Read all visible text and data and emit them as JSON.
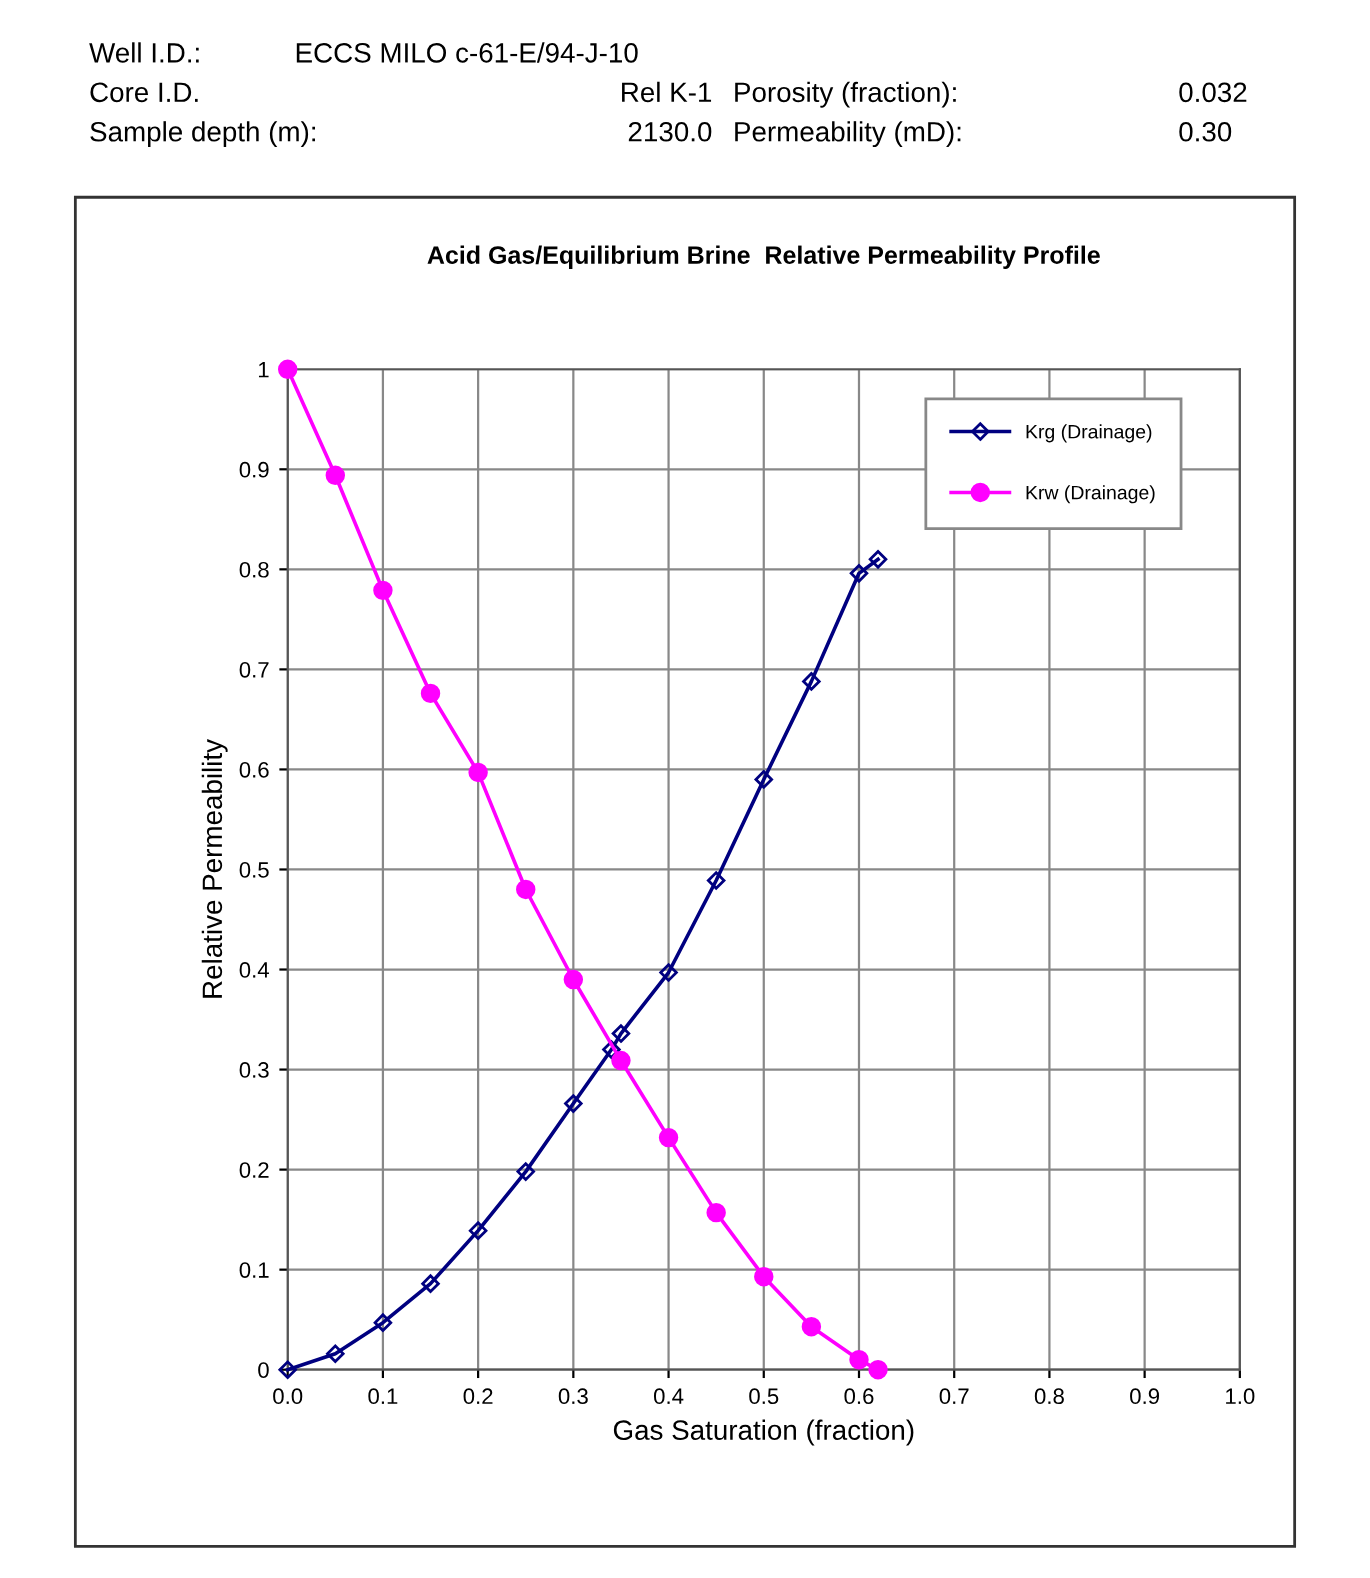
{
  "chart_data": {
    "type": "line",
    "title": "Acid Gas/Equilibrium Brine  Relative Permeability Profile",
    "xlabel": "Gas Saturation (fraction)",
    "ylabel": "Relative Permeability",
    "annotations": [
      "Well I.D.:",
      "ECCS MILO c-61-E/94-J-10",
      "Core I.D.",
      "Rel K-1",
      "Porosity (fraction):",
      "0.032",
      "Sample depth (m):",
      "2130.0",
      "Permeability (mD):",
      "0.30"
    ],
    "series": [
      {
        "name": "Krg (Drainage)",
        "color": "#000080",
        "marker": "diamond",
        "x": [
          0,
          0.05,
          0.1,
          0.15,
          0.2,
          0.25,
          0.3,
          0.34,
          0.35,
          0.4,
          0.45,
          0.5,
          0.55,
          0.6,
          0.62
        ],
        "values": [
          0,
          0.016,
          0.047,
          0.086,
          0.139,
          0.198,
          0.266,
          0.32,
          0.336,
          0.397,
          0.489,
          0.59,
          0.688,
          0.796,
          0.81
        ]
      },
      {
        "name": "Krw (Drainage)",
        "color": "#ff00ff",
        "marker": "circle",
        "x": [
          0,
          0.05,
          0.1,
          0.15,
          0.2,
          0.25,
          0.3,
          0.35,
          0.4,
          0.45,
          0.5,
          0.55,
          0.6,
          0.62
        ],
        "values": [
          1,
          0.894,
          0.779,
          0.676,
          0.597,
          0.48,
          0.39,
          0.309,
          0.232,
          0.157,
          0.093,
          0.043,
          0.01,
          0
        ]
      }
    ],
    "xlim": [
      0,
      1
    ],
    "ylim": [
      0,
      1
    ],
    "xticks": [
      {
        "value": 0,
        "label": "0.0"
      },
      {
        "value": 0.1,
        "label": "0.1"
      },
      {
        "value": 0.2,
        "label": "0.2"
      },
      {
        "value": 0.3,
        "label": "0.3"
      },
      {
        "value": 0.4,
        "label": "0.4"
      },
      {
        "value": 0.5,
        "label": "0.5"
      },
      {
        "value": 0.6,
        "label": "0.6"
      },
      {
        "value": 0.7,
        "label": "0.7"
      },
      {
        "value": 0.8,
        "label": "0.8"
      },
      {
        "value": 0.9,
        "label": "0.9"
      },
      {
        "value": 1,
        "label": "1.0"
      }
    ],
    "yticks": [
      0,
      0.1,
      0.2,
      0.3,
      0.4,
      0.5,
      0.6,
      0.7,
      0.8,
      0.9,
      1
    ],
    "grid": true,
    "legend": "top right",
    "line_style": "solid"
  }
}
